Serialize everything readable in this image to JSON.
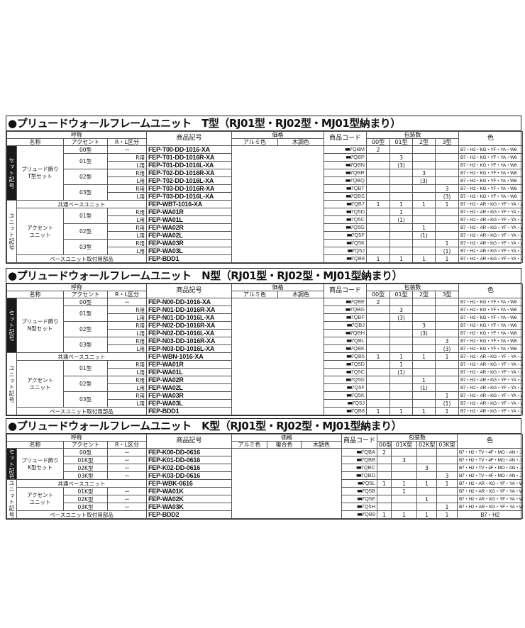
{
  "tables": [
    {
      "title": "●プリュードウォールフレームユニット　T型（RJ01型・RJ02型・MJ01型納まり）",
      "headers": {
        "yobi": "呼称",
        "name": "名称",
        "accent": "アクセント",
        "rl": "R・L区分",
        "code": "商品記号",
        "price": "価格",
        "price_cols": [
          "アルミ色",
          "木調色"
        ],
        "pcode": "商品コード",
        "pack": "包装数",
        "pack_cols": [
          "00型",
          "01型",
          "2型",
          "3型"
        ],
        "color": "色"
      },
      "sections": [
        {
          "label": "セット記号",
          "dark": true
        },
        {
          "label": "ユニット記号",
          "dark": false
        }
      ],
      "rows": [
        {
          "sec": 0,
          "name": "プリュード飾り\nT型セット",
          "accent": "00型",
          "rl": "ー",
          "code": "FEP-T00-DD-1016-XA",
          "pc": "7QBM",
          "qty": [
            "2",
            "",
            "",
            ""
          ],
          "color": "B7・H2・KG・YF・YA・W6"
        },
        {
          "sec": 0,
          "name": "プリュード飾り\nT型セット",
          "accent": "01型",
          "rl": "R用",
          "code": "FEP-T01-DD-1016R-XA",
          "pc": "7QBP",
          "qty": [
            "",
            "3",
            "",
            ""
          ],
          "color": "B7・H2・KG・YF・YA・W6"
        },
        {
          "sec": 0,
          "name": "プリュード飾り\nT型セット",
          "accent": "01型",
          "rl": "L用",
          "code": "FEP-T01-DD-1016L-XA",
          "pc": "7QBN",
          "qty": [
            "",
            "(3)",
            "",
            ""
          ],
          "color": "B7・H2・KG・YF・YA・W6"
        },
        {
          "sec": 0,
          "name": "プリュード飾り\nT型セット",
          "accent": "02型",
          "rl": "R用",
          "code": "FEP-T02-DD-1016R-XA",
          "pc": "7QBR",
          "qty": [
            "",
            "",
            "3",
            ""
          ],
          "color": "B7・H2・KG・YF・YA・W6"
        },
        {
          "sec": 0,
          "name": "プリュード飾り\nT型セット",
          "accent": "02型",
          "rl": "L用",
          "code": "FEP-T02-DD-1016L-XA",
          "pc": "7QBQ",
          "qty": [
            "",
            "",
            "(3)",
            ""
          ],
          "color": "B7・H2・KG・YF・YA・W6"
        },
        {
          "sec": 0,
          "name": "プリュード飾り\nT型セット",
          "accent": "03型",
          "rl": "R用",
          "code": "FEP-T03-DD-1016R-XA",
          "pc": "7QBT",
          "qty": [
            "",
            "",
            "",
            "3"
          ],
          "color": "B7・H2・KG・YF・YA・W6"
        },
        {
          "sec": 0,
          "name": "プリュード飾り\nT型セット",
          "accent": "03型",
          "rl": "L用",
          "code": "FEP-T03-DD-1016L-XA",
          "pc": "7QBS",
          "qty": [
            "",
            "",
            "",
            "(3)"
          ],
          "color": "B7・H2・KG・YF・YA・W6"
        },
        {
          "sec": 1,
          "label": "共通ベースユニット",
          "code": "FEP-WBT-1016-XA",
          "pc": "7QB7",
          "qty": [
            "1",
            "1",
            "1",
            "1"
          ],
          "color": "B7・H2・AR・KG・YF・YA・W6"
        },
        {
          "sec": 1,
          "name": "アクセント\nユニット",
          "accent": "01型",
          "rl": "R用",
          "code": "FEP-WA01R",
          "pc": "7Q5D",
          "qty": [
            "",
            "1",
            "",
            ""
          ],
          "color": "B7・H2・AR・KG・YF・YA・W6"
        },
        {
          "sec": 1,
          "name": "アクセント\nユニット",
          "accent": "01型",
          "rl": "L用",
          "code": "FEP-WA01L",
          "pc": "7Q5C",
          "qty": [
            "",
            "(1)",
            "",
            ""
          ],
          "color": "B7・H2・AR・KG・YF・YA・W6"
        },
        {
          "sec": 1,
          "name": "アクセント\nユニット",
          "accent": "02型",
          "rl": "R用",
          "code": "FEP-WA02R",
          "pc": "7Q5G",
          "qty": [
            "",
            "",
            "1",
            ""
          ],
          "color": "B7・H2・AR・KG・YF・YA・W6"
        },
        {
          "sec": 1,
          "name": "アクセント\nユニット",
          "accent": "02型",
          "rl": "L用",
          "code": "FEP-WA02L",
          "pc": "7Q5F",
          "qty": [
            "",
            "",
            "(1)",
            ""
          ],
          "color": "B7・H2・AR・KG・YF・YA・W6"
        },
        {
          "sec": 1,
          "name": "アクセント\nユニット",
          "accent": "03型",
          "rl": "R用",
          "code": "FEP-WA03R",
          "pc": "7Q5K",
          "qty": [
            "",
            "",
            "",
            "1"
          ],
          "color": "B7・H2・AR・KG・YF・YA・W6"
        },
        {
          "sec": 1,
          "name": "アクセント\nユニット",
          "accent": "03型",
          "rl": "L用",
          "code": "FEP-WA03L",
          "pc": "7Q5J",
          "qty": [
            "",
            "",
            "",
            "(1)"
          ],
          "color": "B7・H2・AR・KG・YF・YA・W6"
        },
        {
          "sec": 1,
          "label": "ベースユニット取付用部品",
          "code": "FEP-BDD1",
          "pc": "7QB8",
          "qty": [
            "1",
            "1",
            "1",
            "1"
          ],
          "color": "B7・H2・AR・KG・YF・YA・W6"
        }
      ]
    },
    {
      "title": "●プリュードウォールフレームユニット　N型（RJ01型・RJ02型・MJ01型納まり）",
      "headers": {
        "yobi": "呼称",
        "name": "名称",
        "accent": "アクセント",
        "rl": "R・L区分",
        "code": "商品記号",
        "price": "価格",
        "price_cols": [
          "アルミ色",
          "木調色"
        ],
        "pcode": "商品コード",
        "pack": "包装数",
        "pack_cols": [
          "00型",
          "01型",
          "2型",
          "3型"
        ],
        "color": "色"
      },
      "sections": [
        {
          "label": "セット記号",
          "dark": true
        },
        {
          "label": "ユニット記号",
          "dark": false
        }
      ],
      "rows": [
        {
          "sec": 0,
          "name": "プリュード飾り\nN型セット",
          "accent": "00型",
          "rl": "ー",
          "code": "FEP-N00-DD-1016-XA",
          "pc": "7QBE",
          "qty": [
            "2",
            "",
            "",
            ""
          ],
          "color": "B7・H2・KG・YF・YA・W6"
        },
        {
          "sec": 0,
          "name": "プリュード飾り\nN型セット",
          "accent": "01型",
          "rl": "R用",
          "code": "FEP-N01-DD-1016R-XA",
          "pc": "7QBG",
          "qty": [
            "",
            "3",
            "",
            ""
          ],
          "color": "B7・H2・KG・YF・YA・W6"
        },
        {
          "sec": 0,
          "name": "プリュード飾り\nN型セット",
          "accent": "01型",
          "rl": "L用",
          "code": "FEP-N01-DD-1016L-XA",
          "pc": "7QBF",
          "qty": [
            "",
            "(3)",
            "",
            ""
          ],
          "color": "B7・H2・KG・YF・YA・W6"
        },
        {
          "sec": 0,
          "name": "プリュード飾り\nN型セット",
          "accent": "02型",
          "rl": "R用",
          "code": "FEP-N02-DD-1016R-XA",
          "pc": "7QBJ",
          "qty": [
            "",
            "",
            "3",
            ""
          ],
          "color": "B7・H2・KG・YF・YA・W6"
        },
        {
          "sec": 0,
          "name": "プリュード飾り\nN型セット",
          "accent": "02型",
          "rl": "L用",
          "code": "FEP-N02-DD-1016L-XA",
          "pc": "7QBH",
          "qty": [
            "",
            "",
            "(3)",
            ""
          ],
          "color": "B7・H2・KG・YF・YA・W6"
        },
        {
          "sec": 0,
          "name": "プリュード飾り\nN型セット",
          "accent": "03型",
          "rl": "R用",
          "code": "FEP-N03-DD-1016R-XA",
          "pc": "7QBL",
          "qty": [
            "",
            "",
            "",
            "3"
          ],
          "color": "B7・H2・KG・YF・YA・W6"
        },
        {
          "sec": 0,
          "name": "プリュード飾り\nN型セット",
          "accent": "03型",
          "rl": "L用",
          "code": "FEP-N03-DD-1016L-XA",
          "pc": "7QBK",
          "qty": [
            "",
            "",
            "",
            "(3)"
          ],
          "color": "B7・H2・KG・YF・YA・W6"
        },
        {
          "sec": 1,
          "label": "共通ベースユニット",
          "code": "FEP-WBN-1016-XA",
          "pc": "7QB5",
          "qty": [
            "1",
            "1",
            "1",
            "1"
          ],
          "color": "B7・H2・AR・KG・YF・YA・W6"
        },
        {
          "sec": 1,
          "name": "アクセント\nユニット",
          "accent": "01型",
          "rl": "R用",
          "code": "FEP-WA01R",
          "pc": "7Q5D",
          "qty": [
            "",
            "1",
            "",
            ""
          ],
          "color": "B7・H2・AR・KG・YF・YA・W6"
        },
        {
          "sec": 1,
          "name": "アクセント\nユニット",
          "accent": "01型",
          "rl": "L用",
          "code": "FEP-WA01L",
          "pc": "7Q5C",
          "qty": [
            "",
            "(1)",
            "",
            ""
          ],
          "color": "B7・H2・AR・KG・YF・YA・W6"
        },
        {
          "sec": 1,
          "name": "アクセント\nユニット",
          "accent": "02型",
          "rl": "R用",
          "code": "FEP-WA02R",
          "pc": "7Q5G",
          "qty": [
            "",
            "",
            "1",
            ""
          ],
          "color": "B7・H2・AR・KG・YF・YA・W6"
        },
        {
          "sec": 1,
          "name": "アクセント\nユニット",
          "accent": "02型",
          "rl": "L用",
          "code": "FEP-WA02L",
          "pc": "7Q5F",
          "qty": [
            "",
            "",
            "(1)",
            ""
          ],
          "color": "B7・H2・AR・KG・YF・YA・W6"
        },
        {
          "sec": 1,
          "name": "アクセント\nユニット",
          "accent": "03型",
          "rl": "R用",
          "code": "FEP-WA03R",
          "pc": "7Q5K",
          "qty": [
            "",
            "",
            "",
            "1"
          ],
          "color": "B7・H2・AR・KG・YF・YA・W6"
        },
        {
          "sec": 1,
          "name": "アクセント\nユニット",
          "accent": "03型",
          "rl": "L用",
          "code": "FEP-WA03L",
          "pc": "7Q5J",
          "qty": [
            "",
            "",
            "",
            "(1)"
          ],
          "color": "B7・H2・AR・KG・YF・YA・W6"
        },
        {
          "sec": 1,
          "label": "ベースユニット取付用部品",
          "code": "FEP-BDD1",
          "pc": "7QB8",
          "qty": [
            "1",
            "1",
            "1",
            "1"
          ],
          "color": "B7・H2・AR・KG・YF・YA・W6"
        }
      ]
    },
    {
      "title": "●プリュードウォールフレームユニット　K型（RJ01型・RJ02型・MJ01型納まり）",
      "headers": {
        "yobi": "呼称",
        "name": "名称",
        "accent": "アクセント",
        "rl": "R・L区分",
        "code": "商品記号",
        "price": "価格",
        "price_cols": [
          "アルミ色",
          "複合色",
          "木調色"
        ],
        "pcode": "商品コード",
        "pack": "包装数",
        "pack_cols": [
          "00型",
          "01K型",
          "02K型",
          "03K型"
        ],
        "color": "色"
      },
      "sections": [
        {
          "label": "セット記号",
          "dark": true
        },
        {
          "label": "ユニット記号",
          "dark": false
        }
      ],
      "rows": [
        {
          "sec": 0,
          "name": "プリュード飾り\nK型セット",
          "accent": "00型",
          "rl": "ー",
          "code": "FEP-K00-DD-0616",
          "pc": "7QBA",
          "qty": [
            "2",
            "",
            "",
            ""
          ],
          "color": "B7・H2・TV・4F・MO・AN・JO・SI・PV・4D"
        },
        {
          "sec": 0,
          "name": "プリュード飾り\nK型セット",
          "accent": "01K型",
          "rl": "ー",
          "code": "FEP-K01-DD-0616",
          "pc": "7QBB",
          "qty": [
            "",
            "3",
            "",
            ""
          ],
          "color": "B7・H2・TV・4F・MO・AN・JO・SI・PV・4D"
        },
        {
          "sec": 0,
          "name": "プリュード飾り\nK型セット",
          "accent": "02K型",
          "rl": "ー",
          "code": "FEP-K02-DD-0616",
          "pc": "7QBC",
          "qty": [
            "",
            "",
            "3",
            ""
          ],
          "color": "B7・H2・TV・4F・MO・AN・JO・SI・PV・4D"
        },
        {
          "sec": 0,
          "name": "プリュード飾り\nK型セット",
          "accent": "03K型",
          "rl": "ー",
          "code": "FEP-K03-DD-0616",
          "pc": "7QBD",
          "qty": [
            "",
            "",
            "",
            "3"
          ],
          "color": "B7・H2・TV・4F・MO・AN・JO・SI・PV・4D"
        },
        {
          "sec": 1,
          "label": "共通ベースユニット",
          "code": "FEP-WBK-0616",
          "pc": "7Q5L",
          "qty": [
            "1",
            "1",
            "1",
            "1"
          ],
          "color": "B7・H2・AR・KG・YF・YA・W6"
        },
        {
          "sec": 1,
          "name": "アクセント\nユニット",
          "accent": "01K型",
          "rl": "ー",
          "code": "FEP-WA01K",
          "pc": "7Q5B",
          "qty": [
            "",
            "1",
            "",
            ""
          ],
          "color": "B7・H2・AR・KG・YF・YA・W6"
        },
        {
          "sec": 1,
          "name": "アクセント\nユニット",
          "accent": "02K型",
          "rl": "ー",
          "code": "FEP-WA02K",
          "pc": "7Q5E",
          "qty": [
            "",
            "",
            "1",
            ""
          ],
          "color": "B7・H2・AR・KG・YF・YA・W6"
        },
        {
          "sec": 1,
          "name": "アクセント\nユニット",
          "accent": "03K型",
          "rl": "ー",
          "code": "FEP-WA03K",
          "pc": "7Q5H",
          "qty": [
            "",
            "",
            "",
            "1"
          ],
          "color": "B7・H2・AR・KG・YF・YA・W6"
        },
        {
          "sec": 1,
          "label": "ベースユニット取付用部品",
          "code": "FEP-BDD2",
          "pc": "7QB9",
          "qty": [
            "1",
            "1",
            "1",
            "1"
          ],
          "color": "B7・H2"
        }
      ]
    }
  ],
  "code_prefix": "■■"
}
